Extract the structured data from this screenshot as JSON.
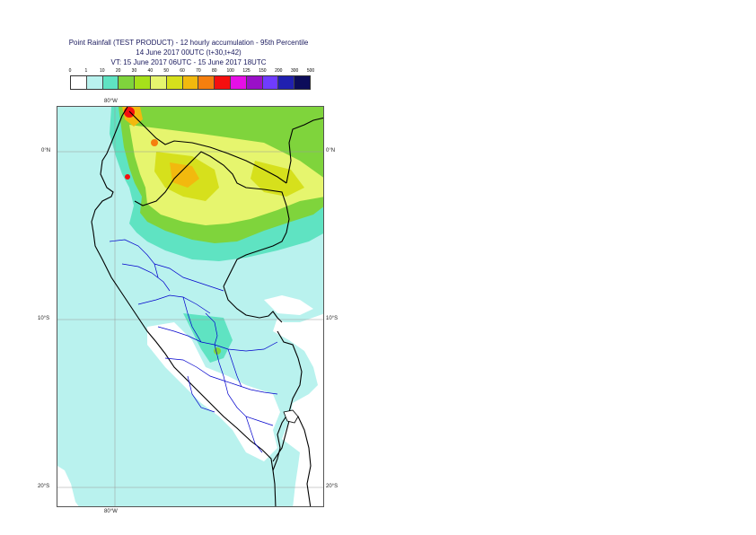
{
  "title": {
    "line1": "Point Rainfall (TEST PRODUCT) - 12 hourly accumulation - 95th Percentile",
    "line2": "14 June 2017 00UTC (t+30,t+42)",
    "line3": "VT: 15 June 2017 06UTC - 15 June 2017 18UTC"
  },
  "colorbar": {
    "ticks": [
      "0",
      "1",
      "10",
      "20",
      "30",
      "40",
      "50",
      "60",
      "70",
      "80",
      "100",
      "125",
      "150",
      "200",
      "300",
      "500"
    ],
    "colors": [
      "#ffffff",
      "#b9f2ee",
      "#5fe3c2",
      "#7fd43c",
      "#a6e01a",
      "#e6f56e",
      "#d6e01c",
      "#f2b90e",
      "#f57f0e",
      "#f50f0f",
      "#e60fe6",
      "#9a10c8",
      "#6f3cff",
      "#2020b0",
      "#0c0c5a"
    ]
  },
  "map": {
    "labels": {
      "lon_top": "80°W",
      "lon_bottom": "80°W",
      "lat_0_left": "0°N",
      "lat_0_right": "0°N",
      "lat_10_left": "10°S",
      "lat_10_right": "10°S",
      "lat_20_left": "20°S",
      "lat_20_right": "20°S"
    },
    "colors": {
      "ocean": "#b9f2ee",
      "light_green": "#5fe3c2",
      "green": "#7fd43c",
      "yellow": "#e6f56e",
      "yellow_dark": "#d6e01c",
      "orange": "#f2b90e",
      "red": "#f50f0f",
      "coast": "#000000",
      "admin": "#0000cc",
      "grid": "#999999"
    }
  }
}
